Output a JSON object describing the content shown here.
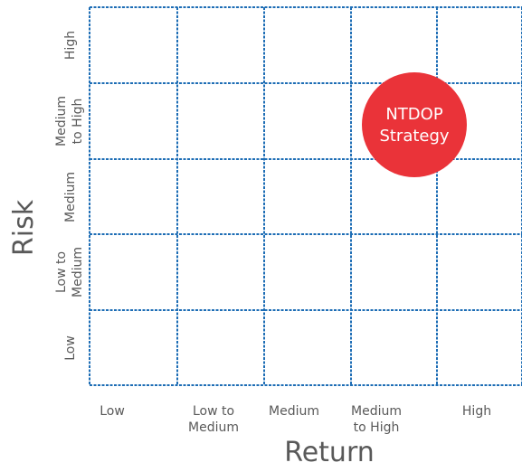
{
  "chart": {
    "x_axis_title": "Return",
    "y_axis_title": "Risk",
    "x_categories": [
      [
        "Low"
      ],
      [
        "Low to",
        "Medium"
      ],
      [
        "Medium"
      ],
      [
        "Medium",
        "to High"
      ],
      [
        "High"
      ]
    ],
    "y_categories": [
      [
        "High"
      ],
      [
        "Medium",
        "to High"
      ],
      [
        "Medium"
      ],
      [
        "Low to",
        "Medium"
      ],
      [
        "Low"
      ]
    ],
    "grid_color": "#1d6db5",
    "label_color": "#595959"
  },
  "bubble": {
    "label_lines": [
      "NTDOP",
      "Strategy"
    ],
    "return_category": "Medium to High",
    "risk_category": "Medium to High",
    "color": "#ea3339"
  }
}
